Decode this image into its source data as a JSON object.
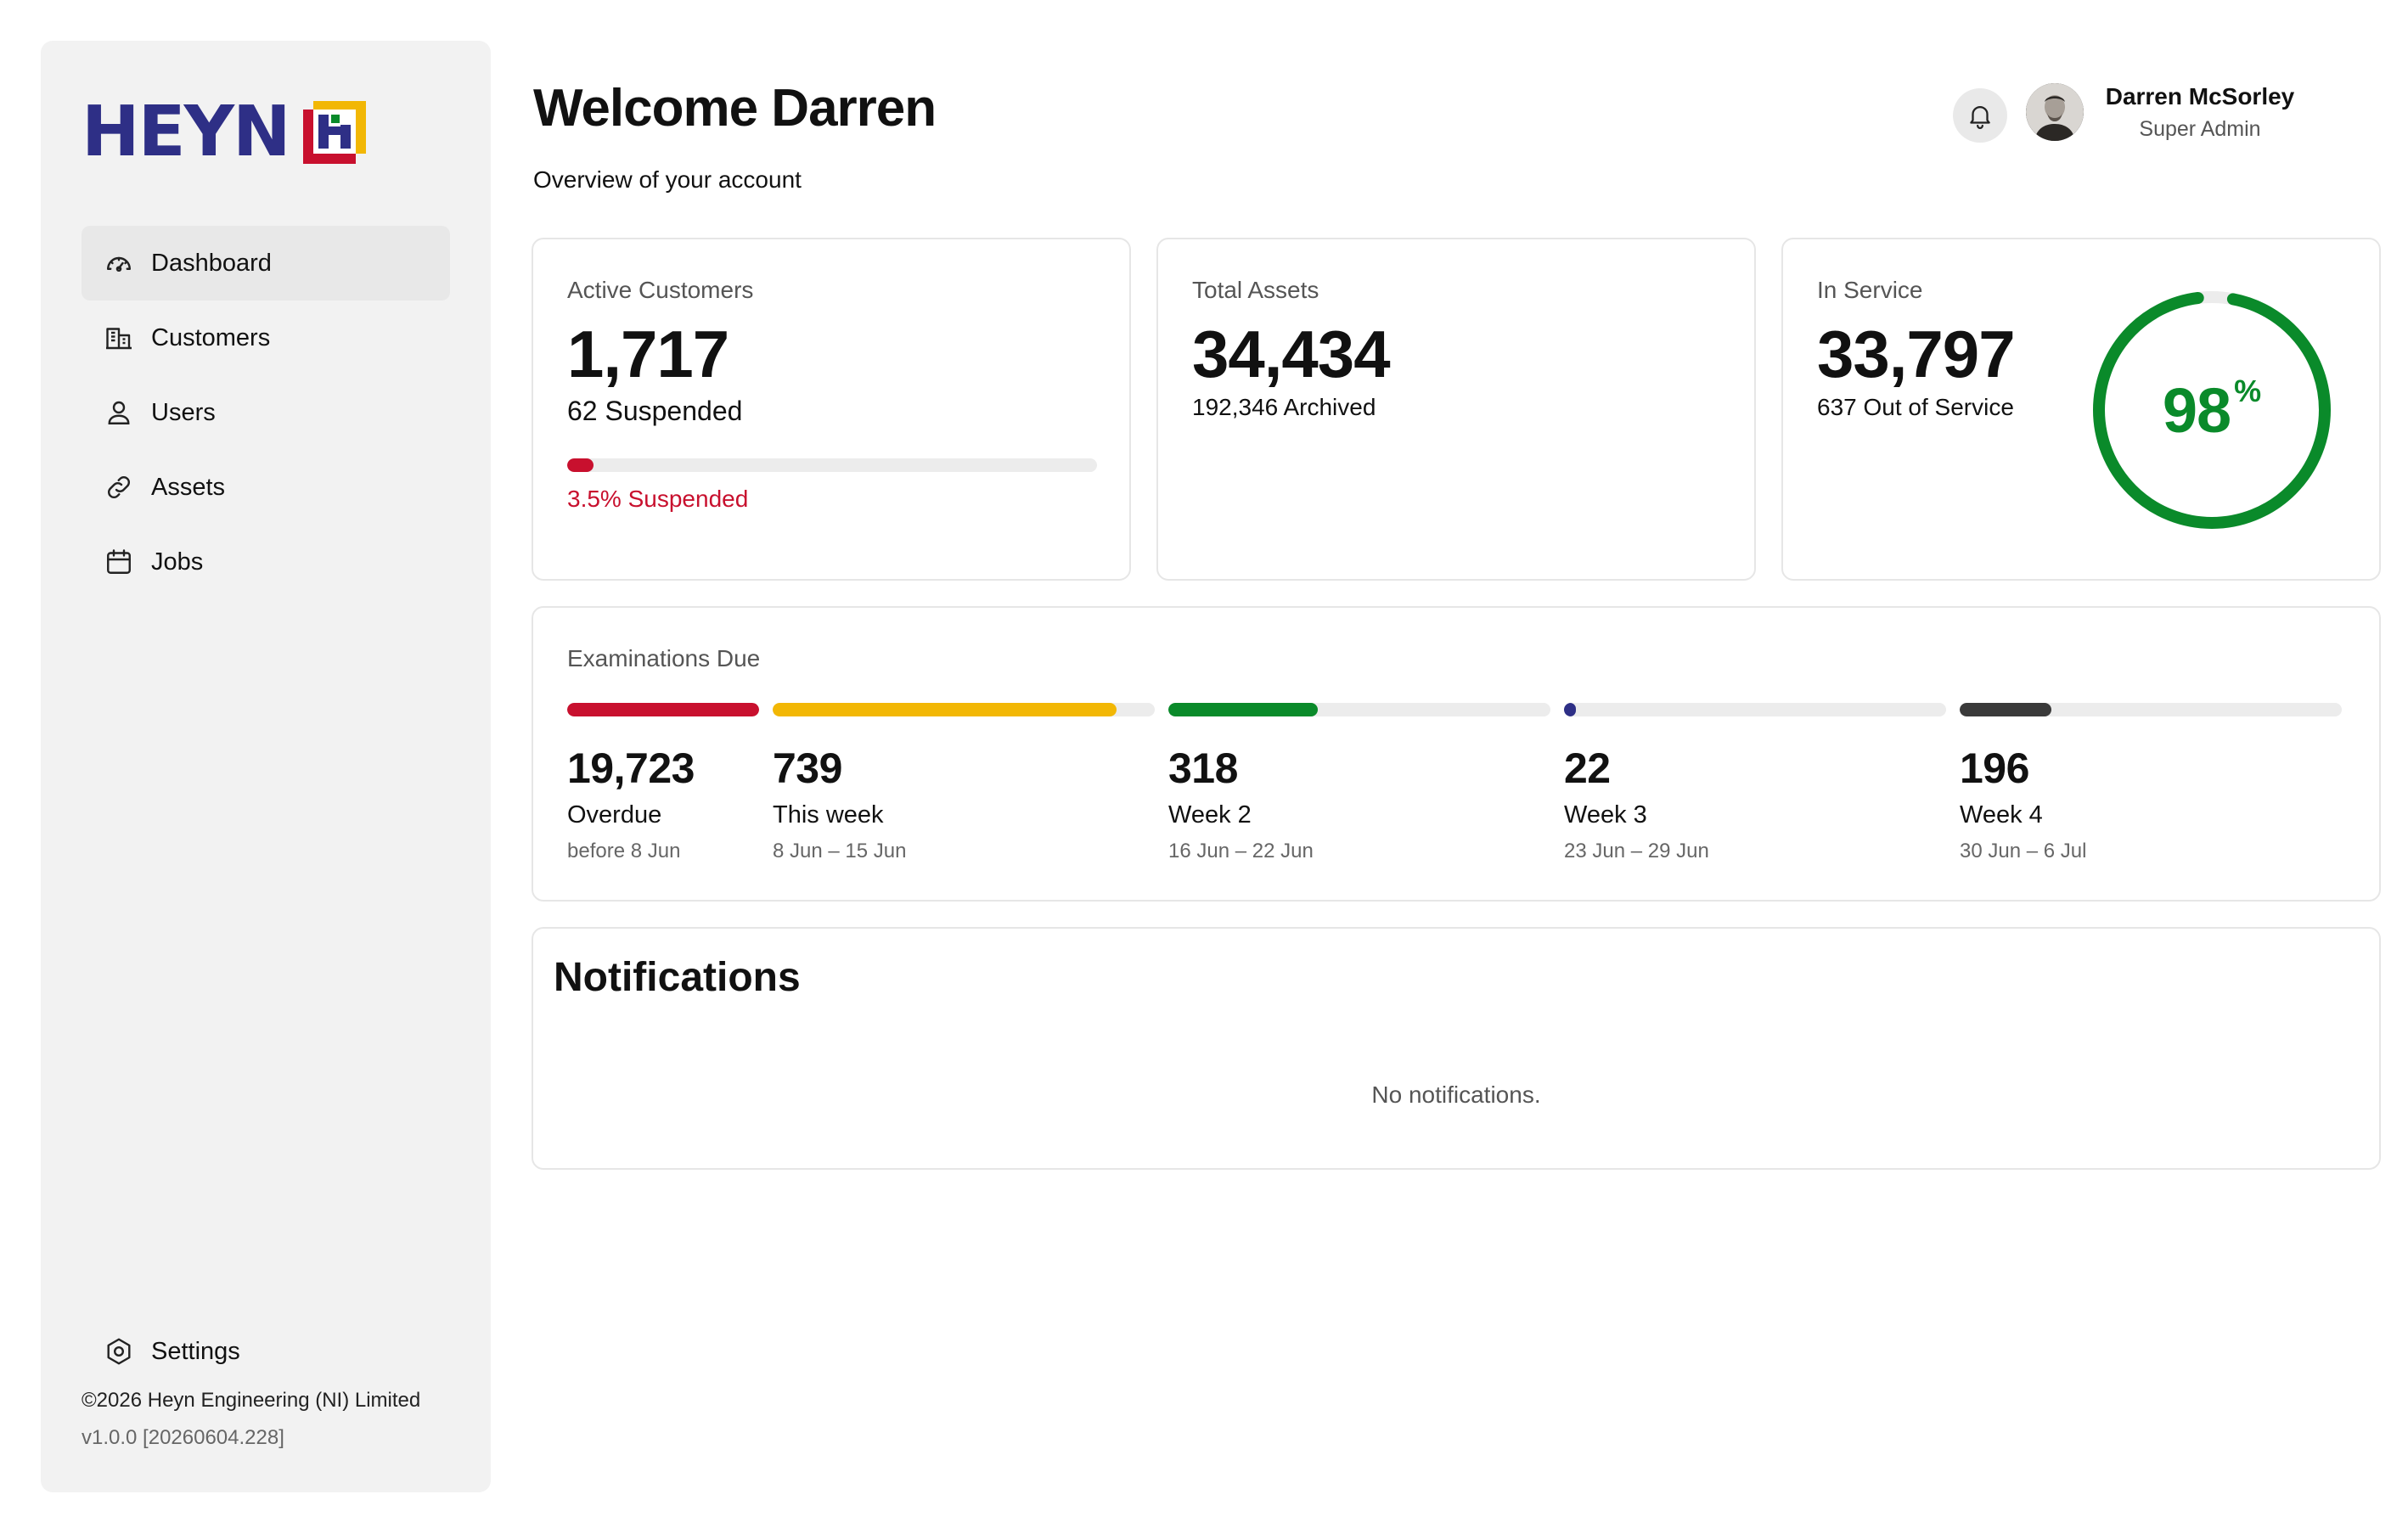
{
  "brand": {
    "name": "HEYN"
  },
  "sidebar": {
    "items": [
      {
        "label": "Dashboard",
        "icon": "dashboard-gauge-icon",
        "active": true
      },
      {
        "label": "Customers",
        "icon": "building-icon",
        "active": false
      },
      {
        "label": "Users",
        "icon": "user-icon",
        "active": false
      },
      {
        "label": "Assets",
        "icon": "link-icon",
        "active": false
      },
      {
        "label": "Jobs",
        "icon": "calendar-icon",
        "active": false
      }
    ],
    "settings": {
      "label": "Settings",
      "icon": "settings-gear-icon"
    },
    "footer": {
      "copyright": "©2026 Heyn Engineering (NI) Limited",
      "version": "v1.0.0 [20260604.228]"
    }
  },
  "header": {
    "title": "Welcome Darren",
    "subtitle": "Overview of your account",
    "user": {
      "name": "Darren McSorley",
      "role": "Super Admin"
    }
  },
  "stats": {
    "customers": {
      "label": "Active Customers",
      "value": "1,717",
      "sub": "62 Suspended",
      "percent_label": "3.5% Suspended",
      "percent": 3.5
    },
    "assets": {
      "label": "Total Assets",
      "value": "34,434",
      "sub": "192,346 Archived"
    },
    "service": {
      "label": "In Service",
      "value": "33,797",
      "sub": "637 Out of Service",
      "gauge_value": "98",
      "gauge_unit": "%",
      "gauge_fraction": 0.98
    }
  },
  "examinations": {
    "label": "Examinations Due",
    "buckets": [
      {
        "value": "19,723",
        "label": "Overdue",
        "range": "before 8 Jun",
        "fill": 1.0,
        "color": "#c8102e"
      },
      {
        "value": "739",
        "label": "This week",
        "range": "8 Jun – 15 Jun",
        "fill": 0.9,
        "color": "#f2b705"
      },
      {
        "value": "318",
        "label": "Week 2",
        "range": "16 Jun – 22 Jun",
        "fill": 0.39,
        "color": "#0a8a2a"
      },
      {
        "value": "22",
        "label": "Week 3",
        "range": "23 Jun – 29 Jun",
        "fill": 0.03,
        "color": "#2e2f86"
      },
      {
        "value": "196",
        "label": "Week 4",
        "range": "30 Jun – 6 Jul",
        "fill": 0.24,
        "color": "#3a3a3a"
      }
    ]
  },
  "notifications": {
    "title": "Notifications",
    "empty_text": "No notifications."
  },
  "colors": {
    "brand_blue": "#2e2f86",
    "danger": "#c8102e",
    "success": "#0a8a2a"
  }
}
